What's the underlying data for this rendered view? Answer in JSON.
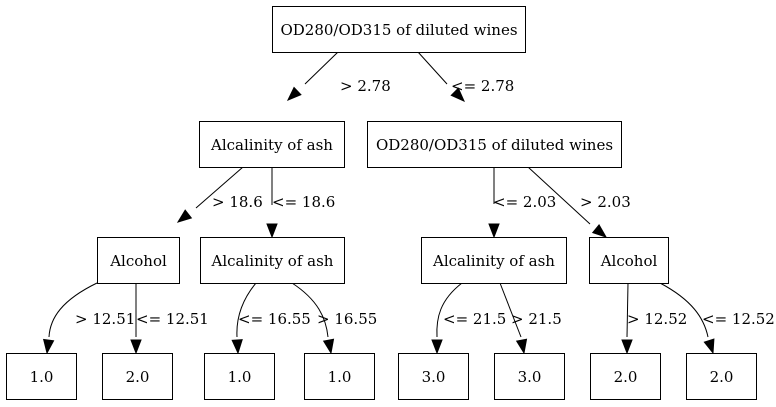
{
  "nodes": [
    {
      "id": "n0",
      "label": "OD280/OD315 of diluted wines"
    },
    {
      "id": "n1",
      "label": "Alcalinity of ash"
    },
    {
      "id": "n2",
      "label": "OD280/OD315 of diluted wines"
    },
    {
      "id": "n3",
      "label": "Alcohol"
    },
    {
      "id": "n4",
      "label": "Alcalinity of ash"
    },
    {
      "id": "n5",
      "label": "Alcalinity of ash"
    },
    {
      "id": "n6",
      "label": "Alcohol"
    },
    {
      "id": "n7",
      "label": "1.0"
    },
    {
      "id": "n8",
      "label": "2.0"
    },
    {
      "id": "n9",
      "label": "1.0"
    },
    {
      "id": "n10",
      "label": "1.0"
    },
    {
      "id": "n11",
      "label": "3.0"
    },
    {
      "id": "n12",
      "label": "3.0"
    },
    {
      "id": "n13",
      "label": "2.0"
    },
    {
      "id": "n14",
      "label": "2.0"
    }
  ],
  "edges": [
    {
      "from": "n0",
      "to": "n1",
      "label": "> 2.78"
    },
    {
      "from": "n0",
      "to": "n2",
      "label": "<= 2.78"
    },
    {
      "from": "n1",
      "to": "n3",
      "label": "> 18.6"
    },
    {
      "from": "n1",
      "to": "n4",
      "label": "<= 18.6"
    },
    {
      "from": "n2",
      "to": "n5",
      "label": "<= 2.03"
    },
    {
      "from": "n2",
      "to": "n6",
      "label": "> 2.03"
    },
    {
      "from": "n3",
      "to": "n7",
      "label": "> 12.51"
    },
    {
      "from": "n3",
      "to": "n8",
      "label": "<= 12.51"
    },
    {
      "from": "n4",
      "to": "n9",
      "label": "<= 16.55"
    },
    {
      "from": "n4",
      "to": "n10",
      "label": "> 16.55"
    },
    {
      "from": "n5",
      "to": "n11",
      "label": "<= 21.5"
    },
    {
      "from": "n5",
      "to": "n12",
      "label": "> 21.5"
    },
    {
      "from": "n6",
      "to": "n13",
      "label": "> 12.52"
    },
    {
      "from": "n6",
      "to": "n14",
      "label": "<= 12.52"
    }
  ]
}
